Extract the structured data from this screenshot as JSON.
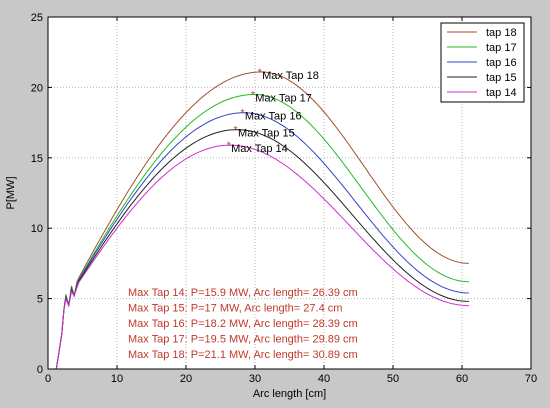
{
  "chart_data": {
    "type": "line",
    "xlabel": "Arc length [cm]",
    "ylabel": "P[MW]",
    "xlim": [
      0,
      70
    ],
    "ylim": [
      0,
      25
    ],
    "xticks": [
      0,
      10,
      20,
      30,
      40,
      50,
      60,
      70
    ],
    "yticks": [
      0,
      5,
      10,
      15,
      20,
      25
    ],
    "grid": true,
    "legend_position": "top-right",
    "series": [
      {
        "name": "tap 18",
        "color": "#a0522d",
        "peak_x": 30.89,
        "peak_y": 21.1,
        "end_y": 7.5
      },
      {
        "name": "tap 17",
        "color": "#22bb22",
        "peak_x": 29.89,
        "peak_y": 19.5,
        "end_y": 6.2
      },
      {
        "name": "tap 16",
        "color": "#3344cc",
        "peak_x": 28.39,
        "peak_y": 18.2,
        "end_y": 5.4
      },
      {
        "name": "tap 15",
        "color": "#222222",
        "peak_x": 27.4,
        "peak_y": 17.0,
        "end_y": 4.8
      },
      {
        "name": "tap 14",
        "color": "#cc33cc",
        "peak_x": 26.39,
        "peak_y": 15.9,
        "end_y": 4.5
      }
    ],
    "x_start": 2.5,
    "x_end": 61,
    "max_labels": [
      "Max Tap 18",
      "Max Tap 17",
      "Max Tap 16",
      "Max Tap 15",
      "Max Tap 14"
    ],
    "notes": [
      "Max Tap 14: P=15.9 MW, Arc length= 26.39 cm",
      "Max Tap 15: P=17 MW, Arc length= 27.4 cm",
      "Max Tap 16: P=18.2 MW, Arc length= 28.39 cm",
      "Max Tap 17: P=19.5 MW, Arc length= 29.89 cm",
      "Max Tap 18: P=21.1 MW, Arc length= 30.89 cm"
    ],
    "note_color": "#c0392b"
  }
}
